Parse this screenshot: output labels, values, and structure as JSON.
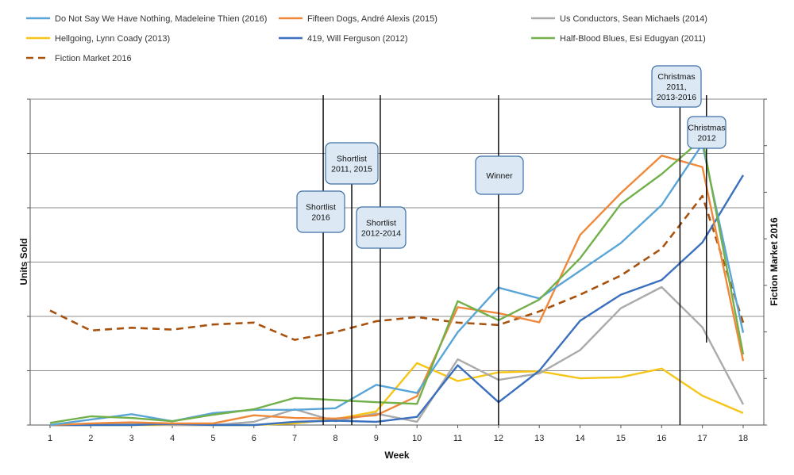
{
  "chart_data": {
    "type": "line",
    "xlabel": "Week",
    "ylabel": "Units Sold",
    "y2label": "Fiction Market 2016",
    "x": [
      1,
      2,
      3,
      4,
      5,
      6,
      7,
      8,
      9,
      10,
      11,
      12,
      13,
      14,
      15,
      16,
      17,
      18
    ],
    "x_tick_labels": [
      "1",
      "2",
      "3",
      "4",
      "5",
      "6",
      "7",
      "8",
      "9",
      "10",
      "11",
      "12",
      "13",
      "14",
      "15",
      "16",
      "17",
      "18"
    ],
    "grid": "horizontal",
    "legend_position": "top",
    "series": [
      {
        "name": "Do Not Say We Have Nothing, Madeleine Thien (2016)",
        "color": "#5AA5D8",
        "dash": false,
        "axis": "left",
        "values": [
          0.0,
          0.1,
          0.2,
          0.07,
          0.22,
          0.28,
          0.28,
          0.31,
          0.74,
          0.59,
          1.71,
          2.53,
          2.33,
          2.84,
          3.35,
          4.05,
          5.17,
          1.7
        ]
      },
      {
        "name": "Fifteen Dogs, André Alexis (2015)",
        "color": "#F0883A",
        "dash": false,
        "axis": "left",
        "values": [
          0.0,
          0.03,
          0.05,
          0.03,
          0.03,
          0.18,
          0.13,
          0.12,
          0.18,
          0.53,
          2.17,
          2.06,
          1.89,
          3.5,
          4.27,
          4.96,
          4.75,
          1.18
        ]
      },
      {
        "name": "Us Conductors, Sean Michaels (2014)",
        "color": "#AAAAAA",
        "dash": false,
        "axis": "left",
        "values": [
          0.0,
          0.0,
          0.03,
          0.0,
          0.0,
          0.06,
          0.29,
          0.07,
          0.21,
          0.06,
          1.21,
          0.83,
          0.95,
          1.38,
          2.15,
          2.54,
          1.8,
          0.38
        ]
      },
      {
        "name": "Hellgoing, Lynn Coady (2013)",
        "color": "#F5C518",
        "dash": false,
        "axis": "left",
        "values": [
          0.0,
          0.0,
          0.0,
          0.0,
          0.0,
          0.0,
          0.03,
          0.11,
          0.25,
          1.14,
          0.81,
          0.97,
          0.99,
          0.86,
          0.88,
          1.04,
          0.54,
          0.22
        ]
      },
      {
        "name": "419, Will Ferguson (2012)",
        "color": "#3A70BE",
        "dash": false,
        "axis": "left",
        "values": [
          0.0,
          0.0,
          0.0,
          0.02,
          0.0,
          0.0,
          0.06,
          0.08,
          0.06,
          0.15,
          1.1,
          0.42,
          1.0,
          1.92,
          2.4,
          2.67,
          3.36,
          4.6
        ]
      },
      {
        "name": "Half-Blood Blues, Esi Edugyan (2011)",
        "color": "#72B04A",
        "dash": false,
        "axis": "left",
        "values": [
          0.04,
          0.16,
          0.13,
          0.07,
          0.19,
          0.29,
          0.5,
          0.46,
          0.42,
          0.39,
          2.28,
          1.93,
          2.31,
          3.07,
          4.07,
          4.62,
          5.27,
          1.3
        ]
      },
      {
        "name": "Fiction Market 2016",
        "color": "#A8520E",
        "dash": true,
        "axis": "right",
        "values": [
          2.46,
          2.03,
          2.09,
          2.05,
          2.16,
          2.2,
          1.83,
          2.0,
          2.23,
          2.32,
          2.2,
          2.15,
          2.44,
          2.8,
          3.21,
          3.79,
          4.92,
          2.2
        ]
      }
    ],
    "annotations": [
      {
        "label_lines": [
          "Shortlist",
          "2016"
        ],
        "x": 7.7
      },
      {
        "label_lines": [
          "Shortlist",
          "2011, 2015"
        ],
        "x": 8.4
      },
      {
        "label_lines": [
          "Shortlist",
          "2012-2014"
        ],
        "x": 9.1
      },
      {
        "label_lines": [
          "Winner"
        ],
        "x": 12.0
      },
      {
        "label_lines": [
          "Christmas",
          "2011,",
          "2013-2016"
        ],
        "x": 16.45
      },
      {
        "label_lines": [
          "Christmas",
          "2012"
        ],
        "x": 17.1
      }
    ]
  }
}
